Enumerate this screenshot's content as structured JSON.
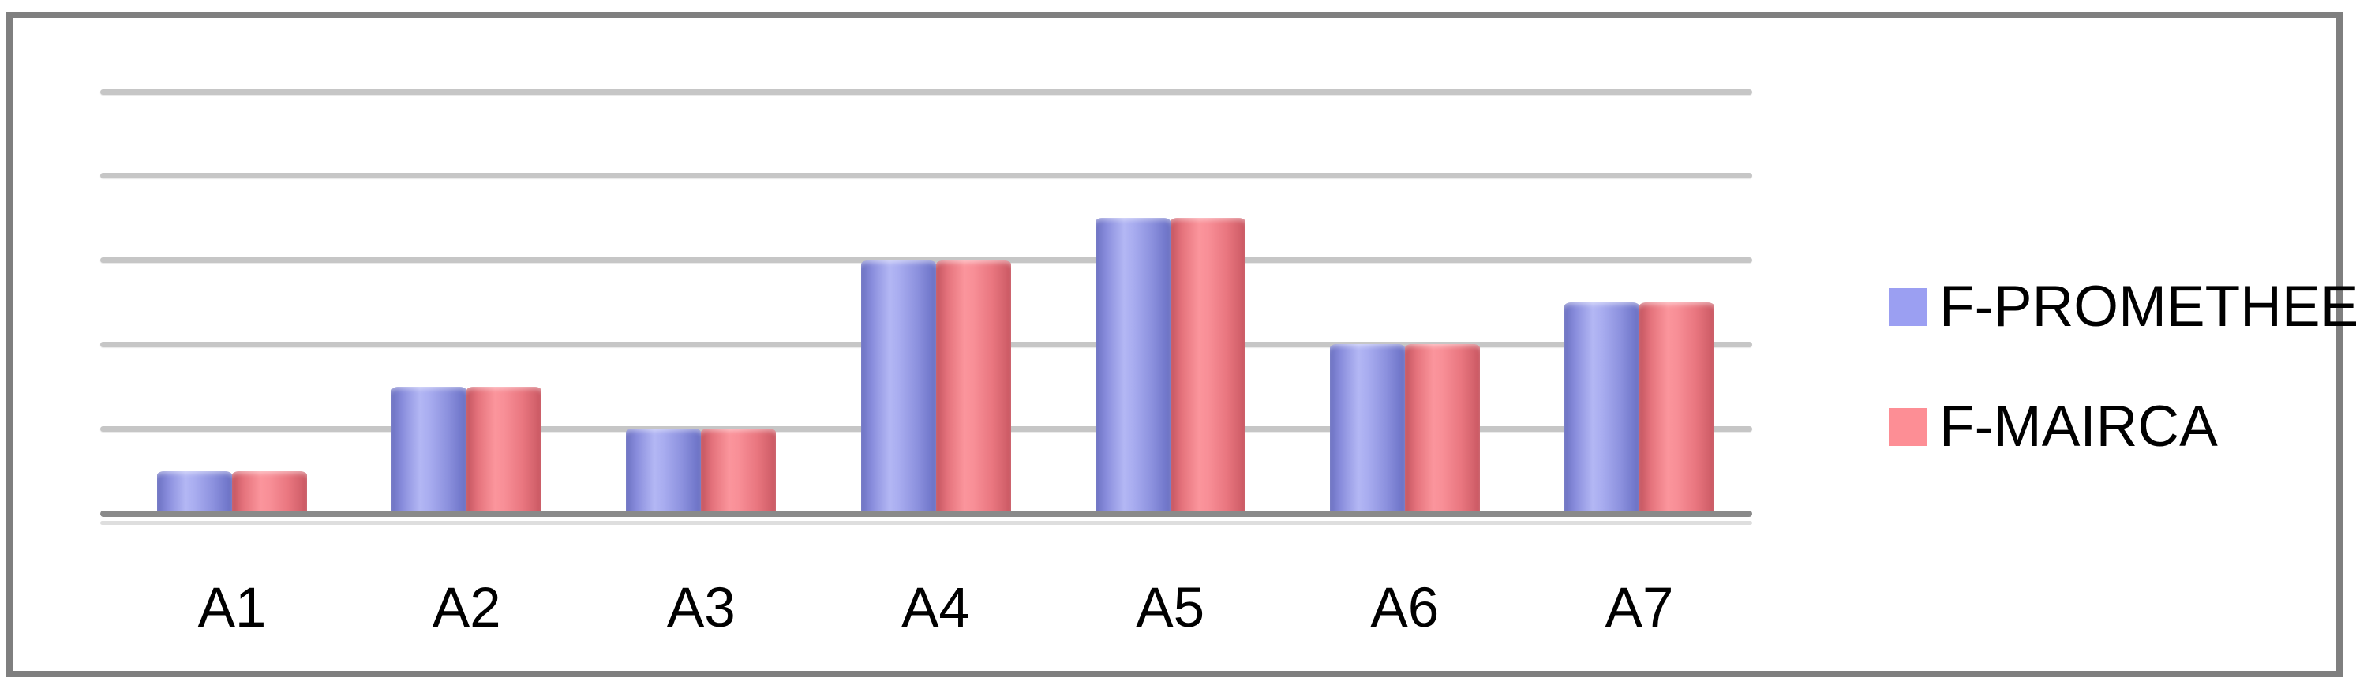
{
  "chart_data": {
    "type": "bar",
    "title": "",
    "xlabel": "",
    "ylabel": "",
    "categories": [
      "A1",
      "A2",
      "A3",
      "A4",
      "A5",
      "A6",
      "A7"
    ],
    "series": [
      {
        "name": "F-PROMETHEE",
        "color": "#9b9ff2",
        "values": [
          1,
          3,
          2,
          6,
          7,
          4,
          5
        ]
      },
      {
        "name": "F-MAIRCA",
        "color": "#fd8e95",
        "values": [
          1,
          3,
          2,
          6,
          7,
          4,
          5
        ]
      }
    ],
    "ylim": [
      0,
      12
    ],
    "gridline_step": 2,
    "gridlines_visible": [
      2,
      4,
      6,
      8,
      10
    ],
    "y_tick_labels": "none",
    "grid": "horizontal",
    "legend_position": "right",
    "note": "No y-axis tick labels are shown in the source figure; values estimated from gridline spacing (one gridline = 2 units). Both methods give identical bar heights per alternative."
  },
  "colors": {
    "frame_border": "#7f7f7f",
    "gridline": "#c6c6c6",
    "axis_line": "#8a8a8a",
    "background": "#ffffff",
    "series1_flat": "#9b9ff2",
    "series2_flat": "#fd8e95",
    "label_text": "#000000"
  }
}
